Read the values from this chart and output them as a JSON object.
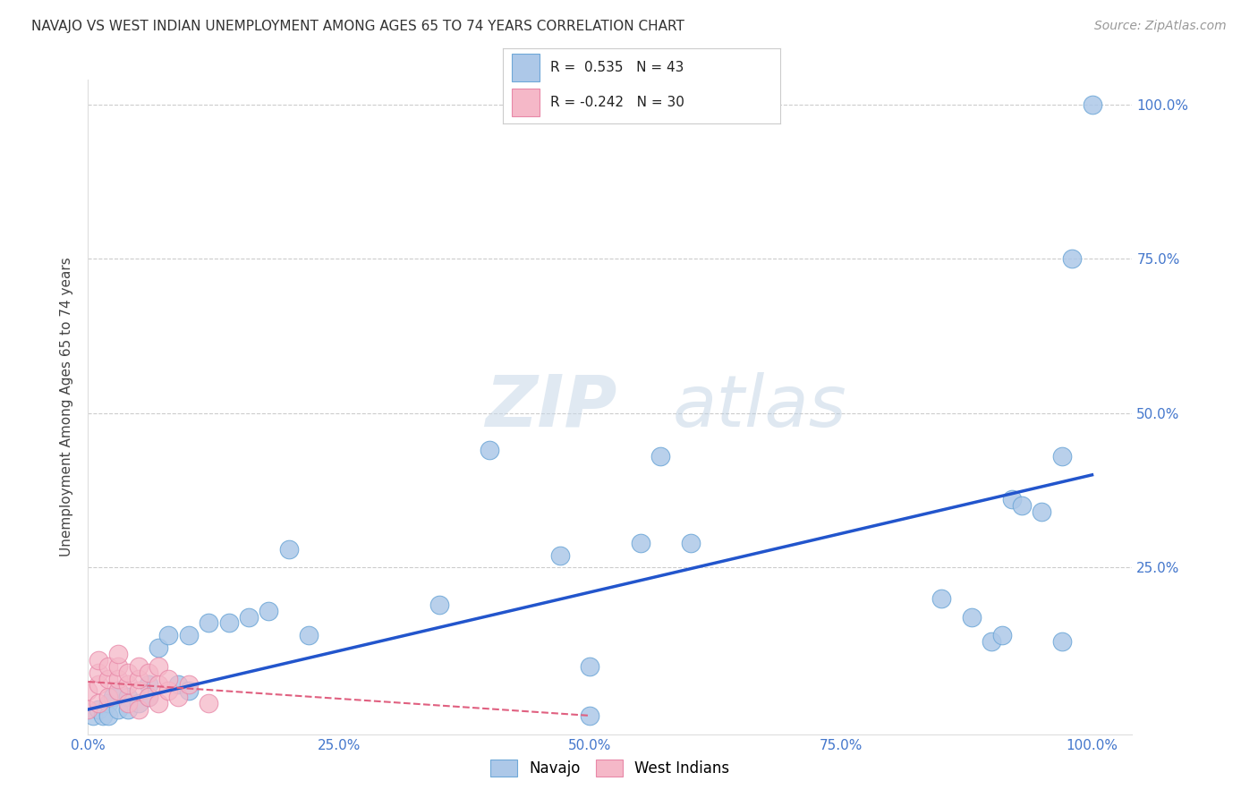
{
  "title": "NAVAJO VS WEST INDIAN UNEMPLOYMENT AMONG AGES 65 TO 74 YEARS CORRELATION CHART",
  "source": "Source: ZipAtlas.com",
  "ylabel": "Unemployment Among Ages 65 to 74 years",
  "navajo_R": 0.535,
  "navajo_N": 43,
  "westindian_R": -0.242,
  "westindian_N": 30,
  "navajo_color": "#adc8e8",
  "navajo_edge_color": "#6fa8d8",
  "westindian_color": "#f5b8c8",
  "westindian_edge_color": "#e888a8",
  "navajo_line_color": "#2255cc",
  "westindian_line_color": "#e06080",
  "background_color": "#ffffff",
  "watermark_zip": "ZIP",
  "watermark_atlas": "atlas",
  "navajo_x": [
    0.005,
    0.01,
    0.015,
    0.02,
    0.02,
    0.025,
    0.03,
    0.03,
    0.04,
    0.04,
    0.05,
    0.06,
    0.06,
    0.07,
    0.08,
    0.09,
    0.1,
    0.1,
    0.12,
    0.14,
    0.16,
    0.18,
    0.2,
    0.22,
    0.35,
    0.4,
    0.47,
    0.5,
    0.5,
    0.55,
    0.57,
    0.6,
    0.85,
    0.88,
    0.9,
    0.91,
    0.92,
    0.93,
    0.95,
    0.97,
    0.97,
    0.98,
    1.0
  ],
  "navajo_y": [
    0.01,
    0.02,
    0.01,
    0.03,
    0.01,
    0.04,
    0.02,
    0.05,
    0.04,
    0.02,
    0.03,
    0.04,
    0.06,
    0.12,
    0.14,
    0.06,
    0.14,
    0.05,
    0.16,
    0.16,
    0.17,
    0.18,
    0.28,
    0.14,
    0.19,
    0.44,
    0.27,
    0.09,
    0.01,
    0.29,
    0.43,
    0.29,
    0.2,
    0.17,
    0.13,
    0.14,
    0.36,
    0.35,
    0.34,
    0.43,
    0.13,
    0.75,
    1.0
  ],
  "westindian_x": [
    0.0,
    0.0,
    0.01,
    0.01,
    0.01,
    0.01,
    0.02,
    0.02,
    0.02,
    0.03,
    0.03,
    0.03,
    0.03,
    0.04,
    0.04,
    0.04,
    0.05,
    0.05,
    0.05,
    0.05,
    0.06,
    0.06,
    0.07,
    0.07,
    0.07,
    0.08,
    0.08,
    0.09,
    0.1,
    0.12
  ],
  "westindian_y": [
    0.02,
    0.05,
    0.03,
    0.06,
    0.08,
    0.1,
    0.04,
    0.07,
    0.09,
    0.05,
    0.07,
    0.09,
    0.11,
    0.03,
    0.06,
    0.08,
    0.02,
    0.05,
    0.07,
    0.09,
    0.04,
    0.08,
    0.03,
    0.06,
    0.09,
    0.05,
    0.07,
    0.04,
    0.06,
    0.03
  ],
  "navajo_line_x0": 0.0,
  "navajo_line_x1": 1.0,
  "navajo_line_y0": 0.02,
  "navajo_line_y1": 0.4,
  "westindian_line_x0": 0.0,
  "westindian_line_x1": 0.5,
  "westindian_line_y0": 0.065,
  "westindian_line_y1": 0.01,
  "xlim": [
    0.0,
    1.04
  ],
  "ylim": [
    -0.02,
    1.04
  ],
  "xticks": [
    0.0,
    0.25,
    0.5,
    0.75,
    1.0
  ],
  "xticklabels": [
    "0.0%",
    "25.0%",
    "50.0%",
    "75.0%",
    "100.0%"
  ],
  "ytick_right_vals": [
    0.25,
    0.5,
    0.75,
    1.0
  ],
  "ytick_right_labels": [
    "25.0%",
    "50.0%",
    "75.0%",
    "100.0%"
  ],
  "tick_color": "#4477cc",
  "grid_color": "#cccccc",
  "title_fontsize": 11,
  "source_fontsize": 10
}
